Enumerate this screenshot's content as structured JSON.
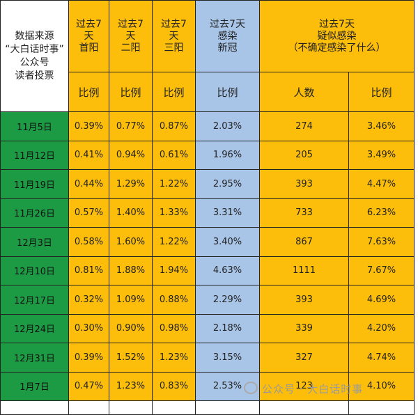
{
  "header": {
    "source": "数据来源\n“大白话时事”\n公众号\n读者投票",
    "col1": "过去7\n天\n首阳",
    "col2": "过去7\n天\n二阳",
    "col3": "过去7\n天\n三阳",
    "col4": "过去7天\n感染\n新冠",
    "col5": "过去7天\n疑似感染\n（不确定感染了什么）"
  },
  "subheader": {
    "c1": "比例",
    "c2": "比例",
    "c3": "比例",
    "c4": "比例",
    "c5": "人数",
    "c6": "比例"
  },
  "rows": [
    {
      "date": "11月5日",
      "first": "0.39%",
      "second": "0.77%",
      "third": "0.87%",
      "covid": "2.03%",
      "count": "274",
      "ratio": "3.46%"
    },
    {
      "date": "11月12日",
      "first": "0.41%",
      "second": "0.94%",
      "third": "0.61%",
      "covid": "1.96%",
      "count": "205",
      "ratio": "3.49%"
    },
    {
      "date": "11月19日",
      "first": "0.44%",
      "second": "1.29%",
      "third": "1.22%",
      "covid": "2.95%",
      "count": "393",
      "ratio": "4.47%"
    },
    {
      "date": "11月26日",
      "first": "0.57%",
      "second": "1.40%",
      "third": "1.33%",
      "covid": "3.31%",
      "count": "733",
      "ratio": "6.23%"
    },
    {
      "date": "12月3日",
      "first": "0.58%",
      "second": "1.60%",
      "third": "1.22%",
      "covid": "3.40%",
      "count": "867",
      "ratio": "7.63%"
    },
    {
      "date": "12月10日",
      "first": "0.81%",
      "second": "1.88%",
      "third": "1.94%",
      "covid": "4.63%",
      "count": "1111",
      "ratio": "7.67%"
    },
    {
      "date": "12月17日",
      "first": "0.32%",
      "second": "1.09%",
      "third": "0.88%",
      "covid": "2.29%",
      "count": "393",
      "ratio": "4.69%"
    },
    {
      "date": "12月24日",
      "first": "0.30%",
      "second": "0.90%",
      "third": "0.98%",
      "covid": "2.18%",
      "count": "339",
      "ratio": "4.20%"
    },
    {
      "date": "12月31日",
      "first": "0.39%",
      "second": "1.52%",
      "third": "1.23%",
      "covid": "3.15%",
      "count": "327",
      "ratio": "4.74%"
    },
    {
      "date": "1月7日",
      "first": "0.47%",
      "second": "1.23%",
      "third": "0.83%",
      "covid": "2.53%",
      "count": "123",
      "ratio": "4.10%"
    }
  ],
  "watermark": "公众号 · 大白话时事",
  "colors": {
    "date_bg": "#1c9a44",
    "orange": "#fcbe0b",
    "blue": "#a8c5e8"
  }
}
